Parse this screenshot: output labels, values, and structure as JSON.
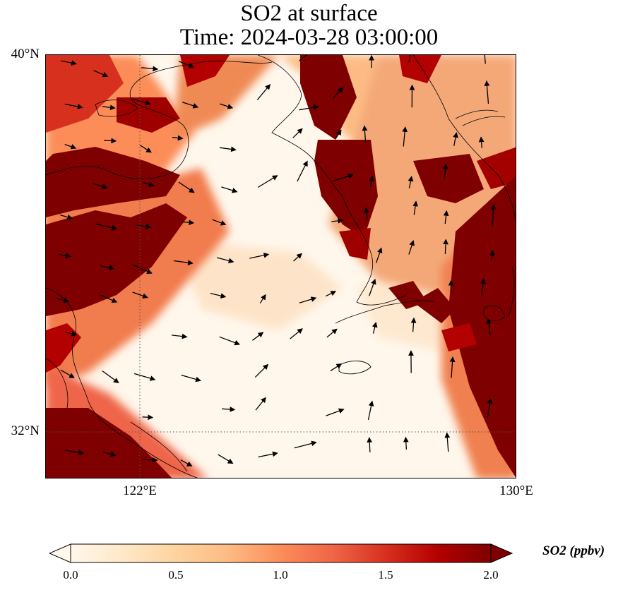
{
  "title": {
    "line1": "SO2 at surface",
    "line2": "Time: 2024-03-28 03:00:00"
  },
  "axes": {
    "lat_ticks": [
      "40°N",
      "32°N"
    ],
    "lon_ticks": [
      "122°E",
      "130°E"
    ],
    "gridlines": "dotted"
  },
  "colorbar": {
    "label": "SO2 (ppbv)",
    "ticks": [
      "0.0",
      "0.5",
      "1.0",
      "1.5",
      "2.0"
    ],
    "min": 0.0,
    "max": 2.0,
    "extend": "both",
    "colormap": "OrRd",
    "colors": [
      "#fff7ec",
      "#fee8c8",
      "#fdd49e",
      "#fdbb84",
      "#fc8d59",
      "#ef6548",
      "#d7301f",
      "#b30000",
      "#7f0000"
    ]
  },
  "map": {
    "lon_range": [
      120,
      130
    ],
    "lat_range": [
      31,
      40
    ],
    "field": "SO2 concentration",
    "wind_vectors": "shown"
  }
}
